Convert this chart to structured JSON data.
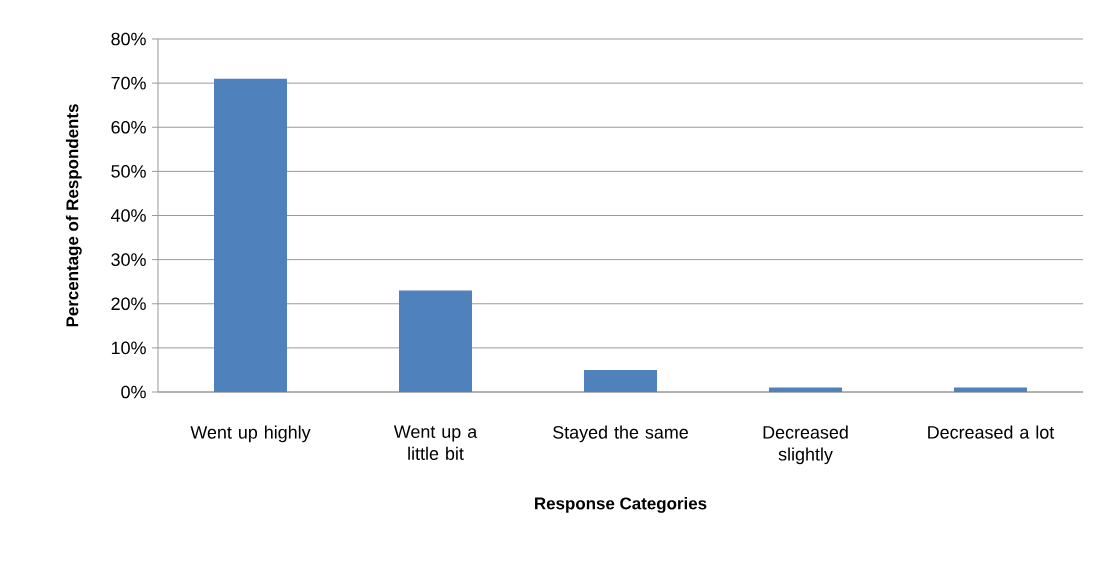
{
  "chart_data": {
    "type": "bar",
    "xlabel": "Response Categories",
    "ylabel": "Percentage of Respondents",
    "categories": [
      "Went up highly",
      "Went up a little bit",
      "Stayed the same",
      "Decreased slightly",
      "Decreased a lot"
    ],
    "values": [
      71,
      23,
      5,
      1,
      1
    ],
    "color": "#4f81bd",
    "ylim": [
      0,
      80
    ],
    "yticks": [
      {
        "value": 0,
        "label": "0%"
      },
      {
        "value": 10,
        "label": "10%"
      },
      {
        "value": 20,
        "label": "20%"
      },
      {
        "value": 30,
        "label": "30%"
      },
      {
        "value": 40,
        "label": "40%"
      },
      {
        "value": 50,
        "label": "50%"
      },
      {
        "value": 60,
        "label": "60%"
      },
      {
        "value": 70,
        "label": "70%"
      },
      {
        "value": 80,
        "label": "80%"
      }
    ],
    "grid": "y"
  }
}
